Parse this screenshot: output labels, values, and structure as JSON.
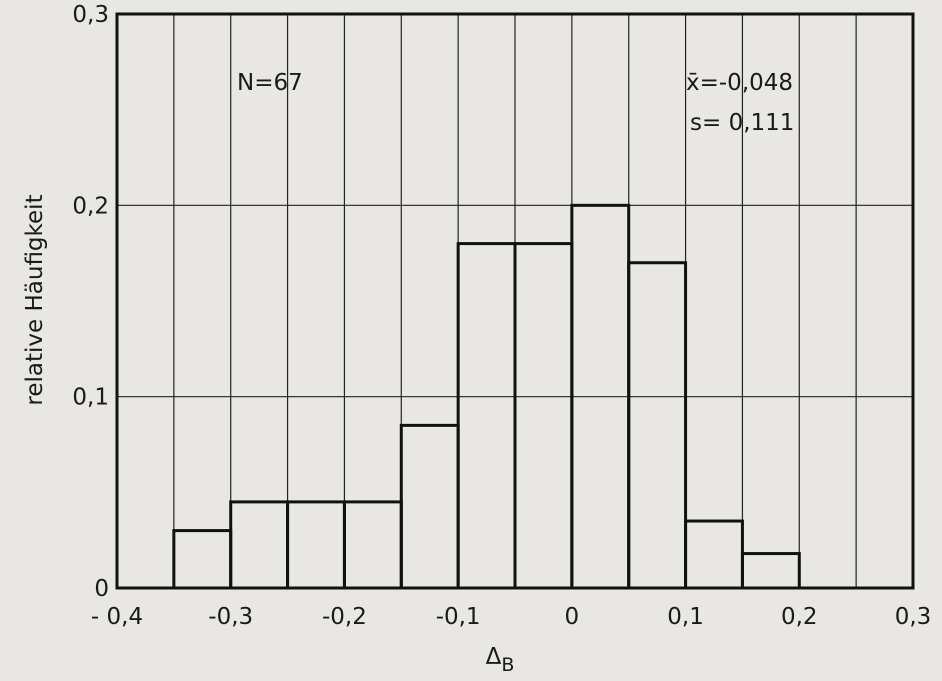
{
  "chart_data": {
    "type": "bar",
    "title": "",
    "xlabel": "",
    "xlabel_main": "Δ",
    "xlabel_sub": "B",
    "ylabel": "relative  Häufigkeit",
    "xlim": [
      -0.4,
      0.3
    ],
    "ylim": [
      0,
      0.3
    ],
    "grid": true,
    "x_ticks": [
      -0.4,
      -0.3,
      -0.2,
      -0.1,
      0,
      0.1,
      0.2,
      0.3
    ],
    "x_tick_labels": [
      "- 0,4",
      "-0,3",
      "-0,2",
      "-0,1",
      "0",
      "0,1",
      "0,2",
      "0,3"
    ],
    "y_ticks": [
      0,
      0.1,
      0.2,
      0.3
    ],
    "y_tick_labels": [
      "0",
      "0,1",
      "0,2",
      "0,3"
    ],
    "bin_width": 0.05,
    "bins": [
      {
        "x0": -0.35,
        "x1": -0.3,
        "value": 0.03
      },
      {
        "x0": -0.3,
        "x1": -0.25,
        "value": 0.045
      },
      {
        "x0": -0.25,
        "x1": -0.2,
        "value": 0.045
      },
      {
        "x0": -0.2,
        "x1": -0.15,
        "value": 0.045
      },
      {
        "x0": -0.15,
        "x1": -0.1,
        "value": 0.085
      },
      {
        "x0": -0.1,
        "x1": -0.05,
        "value": 0.18
      },
      {
        "x0": -0.05,
        "x1": 0.0,
        "value": 0.18
      },
      {
        "x0": 0.0,
        "x1": 0.05,
        "value": 0.2
      },
      {
        "x0": 0.05,
        "x1": 0.1,
        "value": 0.17
      },
      {
        "x0": 0.1,
        "x1": 0.15,
        "value": 0.035
      },
      {
        "x0": 0.15,
        "x1": 0.2,
        "value": 0.018
      }
    ],
    "annotations": {
      "n": "N=67",
      "mean": "x̄=-0,048",
      "sd": "s= 0,111"
    }
  }
}
